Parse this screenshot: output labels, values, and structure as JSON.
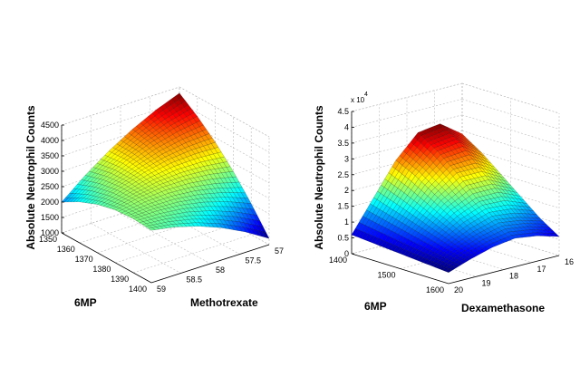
{
  "chart_data": [
    {
      "type": "surface",
      "zlabel": "Absolute Neutrophil Counts",
      "xlabel": "6MP",
      "ylabel": "Methotrexate",
      "zlim": [
        1000,
        4500
      ],
      "grid": true,
      "colormap": "jet",
      "x": [
        1350,
        1360,
        1370,
        1380,
        1390,
        1400
      ],
      "y": [
        59,
        58.6,
        58.2,
        57.8,
        57.4,
        57
      ],
      "z": [
        [
          2000,
          2620,
          3160,
          3620,
          4000,
          4300
        ],
        [
          2330,
          2800,
          3190,
          3500,
          3720,
          3870
        ],
        [
          2570,
          2880,
          3120,
          3280,
          3350,
          3350
        ],
        [
          2710,
          2870,
          2960,
          2960,
          2880,
          2730
        ],
        [
          2750,
          2760,
          2700,
          2550,
          2320,
          2010
        ],
        [
          2700,
          2560,
          2340,
          2040,
          1660,
          1200
        ]
      ],
      "xticks": {
        "values": [
          1350,
          1360,
          1370,
          1380,
          1390,
          1400
        ],
        "labels": [
          "1350",
          "1360",
          "1370",
          "1380",
          "1390",
          "1400"
        ]
      },
      "yticks": {
        "values": [
          59,
          58.5,
          58,
          57.5,
          57
        ],
        "labels": [
          "59",
          "58.5",
          "58",
          "57.5",
          "57"
        ]
      },
      "zticks": {
        "values": [
          1000,
          1500,
          2000,
          2500,
          3000,
          3500,
          4000,
          4500
        ],
        "labels": [
          "1000",
          "1500",
          "2000",
          "2500",
          "3000",
          "3500",
          "4000",
          "4500"
        ]
      }
    },
    {
      "type": "surface",
      "zlabel": "Absolute Neutrophil Counts",
      "xlabel": "6MP",
      "ylabel": "Dexamethasone",
      "zlim": [
        0,
        4.5
      ],
      "zscale_label": "x 10",
      "zscale_exponent": "4",
      "grid": true,
      "colormap": "jet",
      "x": [
        1400,
        1440,
        1480,
        1520,
        1560,
        1600
      ],
      "y": [
        20,
        19.2,
        18.4,
        17.6,
        16.8,
        16
      ],
      "z": [
        [
          0.6,
          1.6,
          2.6,
          3.3,
          3.4,
          2.9
        ],
        [
          0.55,
          1.4,
          2.3,
          2.9,
          3.0,
          2.5
        ],
        [
          0.5,
          1.2,
          1.9,
          2.4,
          2.4,
          2.0
        ],
        [
          0.45,
          1.0,
          1.5,
          1.8,
          1.8,
          1.5
        ],
        [
          0.4,
          0.8,
          1.1,
          1.3,
          1.2,
          1.0
        ],
        [
          0.35,
          0.6,
          0.8,
          0.9,
          0.8,
          0.6
        ]
      ],
      "xticks": {
        "values": [
          1400,
          1500,
          1600
        ],
        "labels": [
          "1400",
          "1500",
          "1600"
        ]
      },
      "yticks": {
        "values": [
          20,
          19,
          18,
          17,
          16
        ],
        "labels": [
          "20",
          "19",
          "18",
          "17",
          "16"
        ]
      },
      "zticks": {
        "values": [
          0,
          0.5,
          1,
          1.5,
          2,
          2.5,
          3,
          3.5,
          4,
          4.5
        ],
        "labels": [
          "0",
          "0.5",
          "1",
          "1.5",
          "2",
          "2.5",
          "3",
          "3.5",
          "4",
          "4.5"
        ]
      }
    }
  ]
}
